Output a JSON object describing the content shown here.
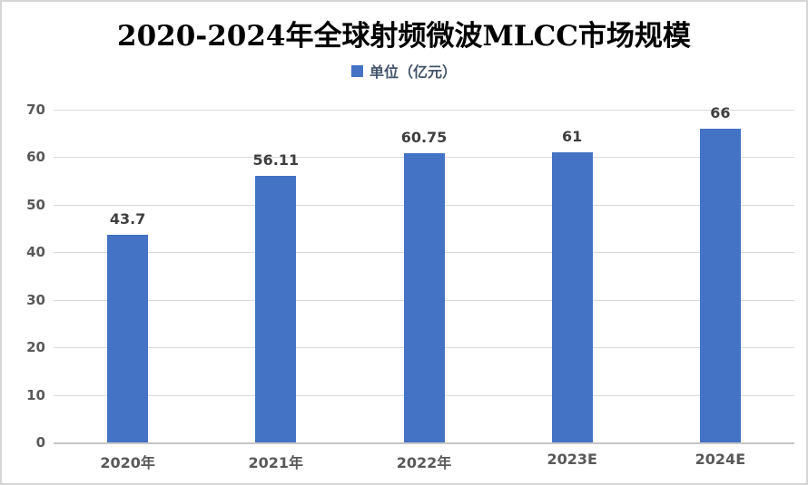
{
  "title": "2020-2024年全球射频微波MLCC市场规模",
  "legend": {
    "label": "单位（亿元）",
    "marker_color": "#4472c4"
  },
  "colors": {
    "bar": "#4472c4",
    "gridline": "#d9d9d9",
    "axis_line": "#c6c6c6",
    "tick_text": "#595959",
    "data_label_text": "#3f3f3f",
    "legend_text": "#44546a",
    "title_text": "#000000",
    "border": "#d6d6d6"
  },
  "chart_data": {
    "type": "bar",
    "title": "2020-2024年全球射频微波MLCC市场规模",
    "categories": [
      "2020年",
      "2021年",
      "2022年",
      "2023E",
      "2024E"
    ],
    "values": [
      43.7,
      56.11,
      60.75,
      61,
      66
    ],
    "data_labels": [
      "43.7",
      "56.11",
      "60.75",
      "61",
      "66"
    ],
    "series_name": "单位（亿元）",
    "xlabel": "",
    "ylabel": "",
    "ylim": [
      0,
      70
    ],
    "yticks": [
      0,
      10,
      20,
      30,
      40,
      50,
      60,
      70
    ],
    "grid": true,
    "legend_position": "top-center",
    "bar_color": "#4472c4"
  }
}
